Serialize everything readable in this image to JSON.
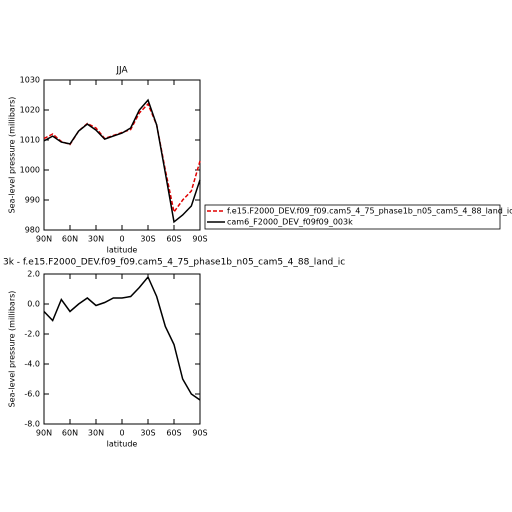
{
  "chart_data": [
    {
      "type": "line",
      "title": "JJA",
      "xlabel": "latitude",
      "ylabel": "Sea-level pressure (millibars)",
      "x": [
        90,
        80,
        70,
        60,
        50,
        40,
        30,
        20,
        10,
        0,
        -10,
        -20,
        -30,
        -40,
        -50,
        -60,
        -70,
        -80,
        -90
      ],
      "xlim": [
        90,
        -90
      ],
      "xticks": [
        {
          "value": 90,
          "label": "90N"
        },
        {
          "value": 60,
          "label": "60N"
        },
        {
          "value": 30,
          "label": "30N"
        },
        0,
        {
          "value": -30,
          "label": "30S"
        },
        {
          "value": -60,
          "label": "60S"
        },
        {
          "value": -90,
          "label": "90S"
        }
      ],
      "ylim": [
        980,
        1030
      ],
      "yticks": [
        980,
        990,
        1000,
        1010,
        1020,
        1030
      ],
      "series": [
        {
          "name": "f.e15.F2000_DEV.f09_f09.cam5_4_75_phase1b_n05_cam5_4_88_land_ic",
          "color": "#e00000",
          "dash": true,
          "values": [
            1010.5,
            1012,
            1009.5,
            1008.5,
            1013,
            1015.5,
            1014,
            1010.5,
            1011.5,
            1012.5,
            1013.5,
            1019,
            1022,
            1015,
            1000,
            986,
            990,
            993,
            1003
          ]
        },
        {
          "name": "cam6_F2000_DEV_f09f09_003k",
          "color": "#000000",
          "dash": false,
          "values": [
            1009.7,
            1011.3,
            1009.3,
            1008.7,
            1013,
            1015.3,
            1013.3,
            1010.3,
            1011.3,
            1012.3,
            1014,
            1020,
            1023.3,
            1015,
            999,
            982.7,
            985,
            988,
            996.7
          ]
        }
      ]
    },
    {
      "type": "line",
      "title": "3k - f.e15.F2000_DEV.f09_f09.cam5_4_75_phase1b_n05_cam5_4_88_land_ic",
      "xlabel": "latitude",
      "ylabel": "Sea-level pressure (millibars)",
      "x": [
        90,
        80,
        70,
        60,
        50,
        40,
        30,
        20,
        10,
        0,
        -10,
        -20,
        -30,
        -40,
        -50,
        -60,
        -70,
        -80,
        -90
      ],
      "xlim": [
        90,
        -90
      ],
      "xticks": [
        {
          "value": 90,
          "label": "90N"
        },
        {
          "value": 60,
          "label": "60N"
        },
        {
          "value": 30,
          "label": "30N"
        },
        0,
        {
          "value": -30,
          "label": "30S"
        },
        {
          "value": -60,
          "label": "60S"
        },
        {
          "value": -90,
          "label": "90S"
        }
      ],
      "ylim": [
        -8,
        2
      ],
      "yticks": [
        {
          "value": -8,
          "label": "-8.0"
        },
        {
          "value": -6,
          "label": "-6.0"
        },
        {
          "value": -4,
          "label": "-4.0"
        },
        {
          "value": -2,
          "label": "-2.0"
        },
        {
          "value": 0,
          "label": "0.0"
        },
        {
          "value": 2,
          "label": "2.0"
        }
      ],
      "series": [
        {
          "color": "#000000",
          "dash": false,
          "values": [
            -0.5,
            -1.1,
            0.3,
            -0.5,
            0,
            0.4,
            -0.1,
            0.1,
            0.4,
            0.4,
            0.5,
            1.1,
            1.8,
            0.5,
            -1.5,
            -2.7,
            -5.0,
            -6.0,
            -6.4
          ]
        }
      ]
    }
  ]
}
